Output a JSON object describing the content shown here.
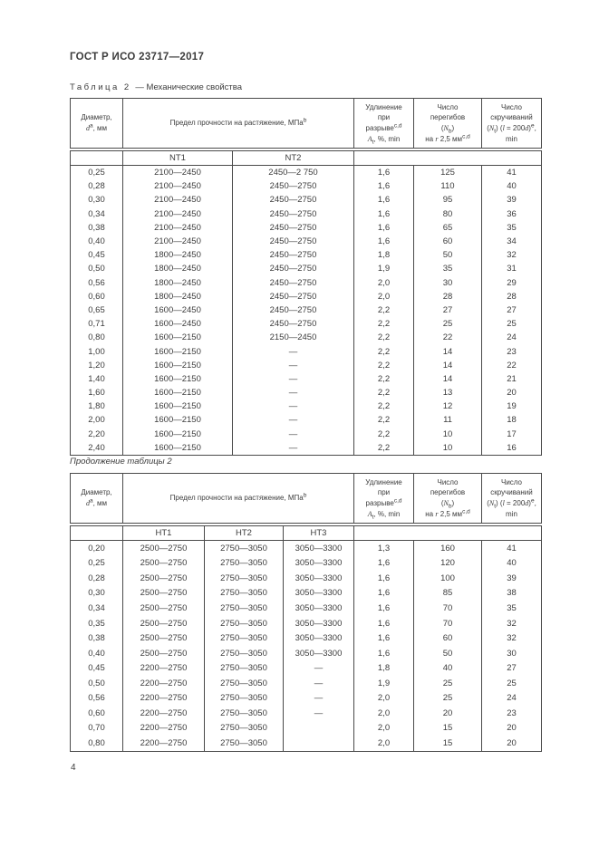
{
  "page": {
    "doc_header": "ГОСТ Р ИСО 23717—2017",
    "page_number": "4"
  },
  "caption": {
    "label": "Таблица 2",
    "rest": "— Механические свойства"
  },
  "continuation_caption": "Продолжение таблицы 2",
  "column_headers": {
    "diameter": "Диаметр,\n*d*^{a}, мм",
    "strength": "Предел прочности на растяжение, МПа^{b}",
    "elongation": "Удлинение\nпри\nразрыве^{c,d}\n*A*_{t}, %, min",
    "bends": "Число\nперегибов\n(*N*_{b})\nна *r* 2,5 мм^{c,d}",
    "twists": "Число\nскручиваний\n(*N*_{t}) (*l* = 200*d*)^{e},\nmin"
  },
  "table1": {
    "grades": [
      "NT1",
      "NT2"
    ],
    "rows": [
      [
        "0,25",
        "2100—2450",
        "2450—2 750",
        "1,6",
        "125",
        "41"
      ],
      [
        "0,28",
        "2100—2450",
        "2450—2750",
        "1,6",
        "110",
        "40"
      ],
      [
        "0,30",
        "2100—2450",
        "2450—2750",
        "1,6",
        "95",
        "39"
      ],
      [
        "0,34",
        "2100—2450",
        "2450—2750",
        "1,6",
        "80",
        "36"
      ],
      [
        "0,38",
        "2100—2450",
        "2450—2750",
        "1,6",
        "65",
        "35"
      ],
      [
        "0,40",
        "2100—2450",
        "2450—2750",
        "1,6",
        "60",
        "34"
      ],
      [
        "0,45",
        "1800—2450",
        "2450—2750",
        "1,8",
        "50",
        "32"
      ],
      [
        "0,50",
        "1800—2450",
        "2450—2750",
        "1,9",
        "35",
        "31"
      ],
      [
        "0,56",
        "1800—2450",
        "2450—2750",
        "2,0",
        "30",
        "29"
      ],
      [
        "0,60",
        "1800—2450",
        "2450—2750",
        "2,0",
        "28",
        "28"
      ],
      [
        "0,65",
        "1600—2450",
        "2450—2750",
        "2,2",
        "27",
        "27"
      ],
      [
        "0,71",
        "1600—2450",
        "2450—2750",
        "2,2",
        "25",
        "25"
      ],
      [
        "0,80",
        "1600—2150",
        "2150—2450",
        "2,2",
        "22",
        "24"
      ],
      [
        "1,00",
        "1600—2150",
        "—",
        "2,2",
        "14",
        "23"
      ],
      [
        "1,20",
        "1600—2150",
        "—",
        "2,2",
        "14",
        "22"
      ],
      [
        "1,40",
        "1600—2150",
        "—",
        "2,2",
        "14",
        "21"
      ],
      [
        "1,60",
        "1600—2150",
        "—",
        "2,2",
        "13",
        "20"
      ],
      [
        "1,80",
        "1600—2150",
        "—",
        "2,2",
        "12",
        "19"
      ],
      [
        "2,00",
        "1600—2150",
        "—",
        "2,2",
        "11",
        "18"
      ],
      [
        "2,20",
        "1600—2150",
        "—",
        "2,2",
        "10",
        "17"
      ],
      [
        "2,40",
        "1600—2150",
        "—",
        "2,2",
        "10",
        "16"
      ]
    ]
  },
  "table2": {
    "grades": [
      "НТ1",
      "НТ2",
      "НТ3"
    ],
    "rows": [
      [
        "0,20",
        "2500—2750",
        "2750—3050",
        "3050—3300",
        "1,3",
        "160",
        "41"
      ],
      [
        "0,25",
        "2500—2750",
        "2750—3050",
        "3050—3300",
        "1,6",
        "120",
        "40"
      ],
      [
        "0,28",
        "2500—2750",
        "2750—3050",
        "3050—3300",
        "1,6",
        "100",
        "39"
      ],
      [
        "0,30",
        "2500—2750",
        "2750—3050",
        "3050—3300",
        "1,6",
        "85",
        "38"
      ],
      [
        "0,34",
        "2500—2750",
        "2750—3050",
        "3050—3300",
        "1,6",
        "70",
        "35"
      ],
      [
        "0,35",
        "2500—2750",
        "2750—3050",
        "3050—3300",
        "1,6",
        "70",
        "32"
      ],
      [
        "0,38",
        "2500—2750",
        "2750—3050",
        "3050—3300",
        "1,6",
        "60",
        "32"
      ],
      [
        "0,40",
        "2500—2750",
        "2750—3050",
        "3050—3300",
        "1,6",
        "50",
        "30"
      ],
      [
        "0,45",
        "2200—2750",
        "2750—3050",
        "—",
        "1,8",
        "40",
        "27"
      ],
      [
        "0,50",
        "2200—2750",
        "2750—3050",
        "—",
        "1,9",
        "25",
        "25"
      ],
      [
        "0,56",
        "2200—2750",
        "2750—3050",
        "—",
        "2,0",
        "25",
        "24"
      ],
      [
        "0,60",
        "2200—2750",
        "2750—3050",
        "—",
        "2,0",
        "20",
        "23"
      ],
      [
        "0,70",
        "2200—2750",
        "2750—3050",
        "",
        "2,0",
        "15",
        "20"
      ],
      [
        "0,80",
        "2200—2750",
        "2750—3050",
        "",
        "2,0",
        "15",
        "20"
      ]
    ]
  }
}
